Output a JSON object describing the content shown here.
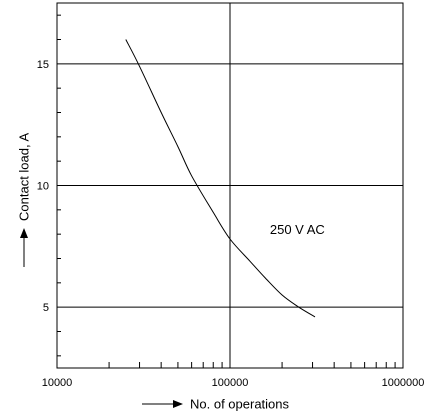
{
  "chart_data": {
    "type": "line",
    "xscale": "log",
    "xlim": [
      10000,
      1000000
    ],
    "ylim": [
      2.5,
      17.5
    ],
    "xticks": [
      {
        "value": 10000,
        "label": "10000"
      },
      {
        "value": 100000,
        "label": "100000"
      },
      {
        "value": 1000000,
        "label": "1000000"
      }
    ],
    "yticks": [
      {
        "value": 5,
        "label": "5"
      },
      {
        "value": 10,
        "label": "10"
      },
      {
        "value": 15,
        "label": "15"
      }
    ],
    "xlabel": "No. of operations",
    "ylabel": "Contact load, A",
    "grid": true,
    "series": [
      {
        "name": "250 V AC",
        "color": "#000000",
        "x": [
          25000,
          30000,
          40000,
          50000,
          60000,
          80000,
          100000,
          130000,
          160000,
          200000,
          250000,
          310000
        ],
        "y": [
          16.0,
          14.9,
          13.0,
          11.6,
          10.4,
          8.9,
          7.8,
          6.9,
          6.2,
          5.5,
          5.0,
          4.6
        ]
      }
    ],
    "annotations": [
      {
        "text": "250 V AC",
        "x": 170000,
        "y": 8.0
      }
    ]
  }
}
